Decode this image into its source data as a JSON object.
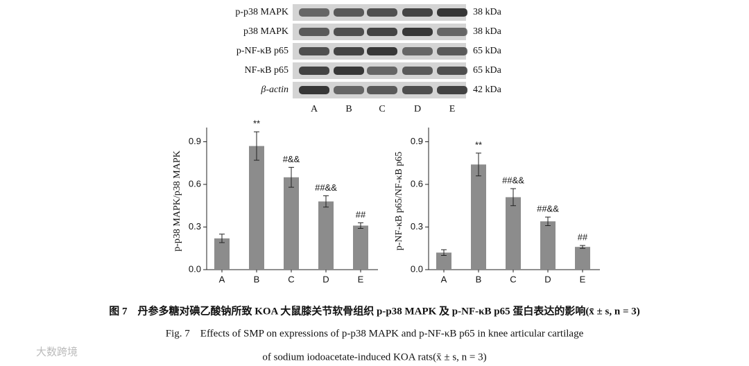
{
  "blot": {
    "proteins": [
      "p-p38 MAPK",
      "p38 MAPK",
      "p-NF-κB p65",
      "NF-κB p65",
      "β-actin"
    ],
    "sizes": [
      "38 kDa",
      "38 kDa",
      "65 kDa",
      "65 kDa",
      "42 kDa"
    ],
    "lanes": [
      "A",
      "B",
      "C",
      "D",
      "E"
    ]
  },
  "chart_data": [
    {
      "type": "bar",
      "y_label": "p-p38 MAPK/p38 MAPK",
      "categories": [
        "A",
        "B",
        "C",
        "D",
        "E"
      ],
      "values": [
        0.22,
        0.87,
        0.65,
        0.48,
        0.31
      ],
      "errors": [
        0.03,
        0.1,
        0.07,
        0.04,
        0.02
      ],
      "annotations": [
        null,
        "**",
        "#&&",
        "##&&",
        "##"
      ],
      "color": "#8c8c8c",
      "ylim": [
        0,
        1.0
      ],
      "yticks": [
        {
          "value": 0,
          "label": "0.0"
        },
        0.3,
        0.6,
        0.9
      ]
    },
    {
      "type": "bar",
      "y_label": "p-NF-κB p65/NF-κB p65",
      "categories": [
        "A",
        "B",
        "C",
        "D",
        "E"
      ],
      "values": [
        0.12,
        0.74,
        0.51,
        0.34,
        0.16
      ],
      "errors": [
        0.02,
        0.08,
        0.06,
        0.03,
        0.01
      ],
      "annotations": [
        null,
        "**",
        "##&&",
        "##&&",
        "##"
      ],
      "color": "#8c8c8c",
      "ylim": [
        0,
        1.0
      ],
      "yticks": [
        {
          "value": 0,
          "label": "0.0"
        },
        0.3,
        0.6,
        0.9
      ]
    }
  ],
  "caption": {
    "chinese": "图 7　丹参多糖对碘乙酸钠所致 KOA 大鼠膝关节软骨组织 p-p38 MAPK 及 p-NF-κB p65 蛋白表达的影响(x̄ ± s, n = 3)",
    "english_1": "Fig. 7　Effects of SMP on expressions of p-p38 MAPK and p-NF-κB p65 in knee articular cartilage",
    "english_2": "of sodium iodoacetate-induced KOA rats(x̄ ± s, n = 3)"
  },
  "watermark": "大数跨境"
}
